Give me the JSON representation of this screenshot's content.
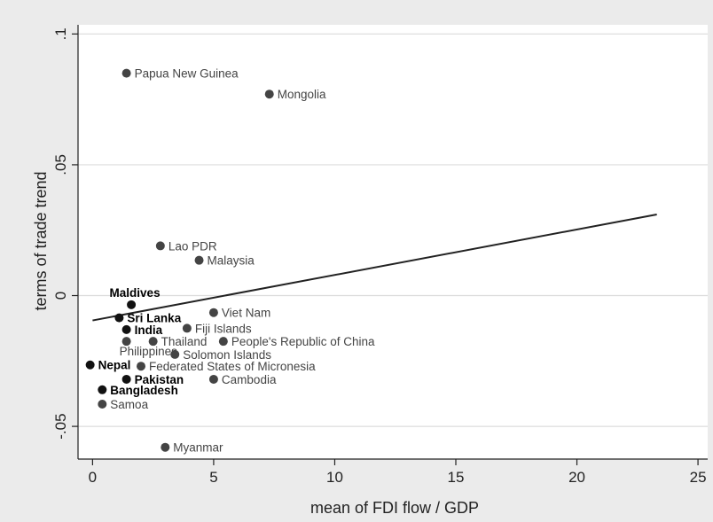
{
  "chart_data": {
    "type": "scatter",
    "title": "",
    "xlabel": "mean of FDI flow / GDP",
    "ylabel": "terms of trade trend",
    "xlim": [
      -0.6,
      25.4
    ],
    "ylim": [
      -0.0625,
      0.1035
    ],
    "x_ticks": [
      {
        "value": 0,
        "label": "0"
      },
      {
        "value": 5,
        "label": "5"
      },
      {
        "value": 10,
        "label": "10"
      },
      {
        "value": 15,
        "label": "15"
      },
      {
        "value": 20,
        "label": "20"
      },
      {
        "value": 25,
        "label": "25"
      }
    ],
    "y_ticks": [
      {
        "value": -0.05,
        "label": "-.05"
      },
      {
        "value": 0,
        "label": "0"
      },
      {
        "value": 0.05,
        "label": ".05"
      },
      {
        "value": 0.1,
        "label": ".1"
      }
    ],
    "grid": "horizontal",
    "colors": {
      "plot_background": "#ffffff",
      "outer_background": "#ebebeb",
      "grid": "#dcdcdc",
      "marker_dark": "#111111",
      "marker_gray": "#444444",
      "label_dark": "#000000",
      "label_gray": "#444444",
      "fit_line": "#222222"
    },
    "points": [
      {
        "label": "Papua New Guinea",
        "x": 1.4,
        "y": 0.085,
        "group": "gray",
        "label_pos": "right"
      },
      {
        "label": "Mongolia",
        "x": 7.3,
        "y": 0.077,
        "group": "gray",
        "label_pos": "right"
      },
      {
        "label": "Lao PDR",
        "x": 2.8,
        "y": 0.019,
        "group": "gray",
        "label_pos": "right"
      },
      {
        "label": "Malaysia",
        "x": 4.4,
        "y": 0.0135,
        "group": "gray",
        "label_pos": "right"
      },
      {
        "label": "Maldives",
        "x": 1.6,
        "y": -0.0035,
        "group": "dark",
        "label_pos": "above"
      },
      {
        "label": "Viet Nam",
        "x": 5.0,
        "y": -0.0065,
        "group": "gray",
        "label_pos": "right"
      },
      {
        "label": "Sri Lanka",
        "x": 1.1,
        "y": -0.0085,
        "group": "dark",
        "label_pos": "right"
      },
      {
        "label": "India",
        "x": 1.4,
        "y": -0.013,
        "group": "dark",
        "label_pos": "right"
      },
      {
        "label": "Fiji Islands",
        "x": 3.9,
        "y": -0.0125,
        "group": "gray",
        "label_pos": "right"
      },
      {
        "label": "Philippines",
        "x": 1.4,
        "y": -0.0175,
        "group": "gray",
        "label_pos": "below-left"
      },
      {
        "label": "Thailand",
        "x": 2.5,
        "y": -0.0175,
        "group": "gray",
        "label_pos": "right"
      },
      {
        "label": "People's Republic of China",
        "x": 5.4,
        "y": -0.0175,
        "group": "gray",
        "label_pos": "right"
      },
      {
        "label": "Solomon Islands",
        "x": 3.4,
        "y": -0.0225,
        "group": "gray",
        "label_pos": "right"
      },
      {
        "label": "Nepal",
        "x": -0.1,
        "y": -0.0265,
        "group": "dark",
        "label_pos": "right"
      },
      {
        "label": "Federated States of Micronesia",
        "x": 2.0,
        "y": -0.027,
        "group": "gray",
        "label_pos": "right"
      },
      {
        "label": "Pakistan",
        "x": 1.4,
        "y": -0.032,
        "group": "dark",
        "label_pos": "right"
      },
      {
        "label": "Cambodia",
        "x": 5.0,
        "y": -0.032,
        "group": "gray",
        "label_pos": "right"
      },
      {
        "label": "Bangladesh",
        "x": 0.4,
        "y": -0.036,
        "group": "dark",
        "label_pos": "right"
      },
      {
        "label": "Samoa",
        "x": 0.4,
        "y": -0.0415,
        "group": "gray",
        "label_pos": "right"
      },
      {
        "label": "Myanmar",
        "x": 3.0,
        "y": -0.058,
        "group": "gray",
        "label_pos": "right"
      }
    ],
    "fit_line": {
      "x": [
        0,
        23.3
      ],
      "y": [
        -0.0095,
        0.031
      ]
    }
  }
}
